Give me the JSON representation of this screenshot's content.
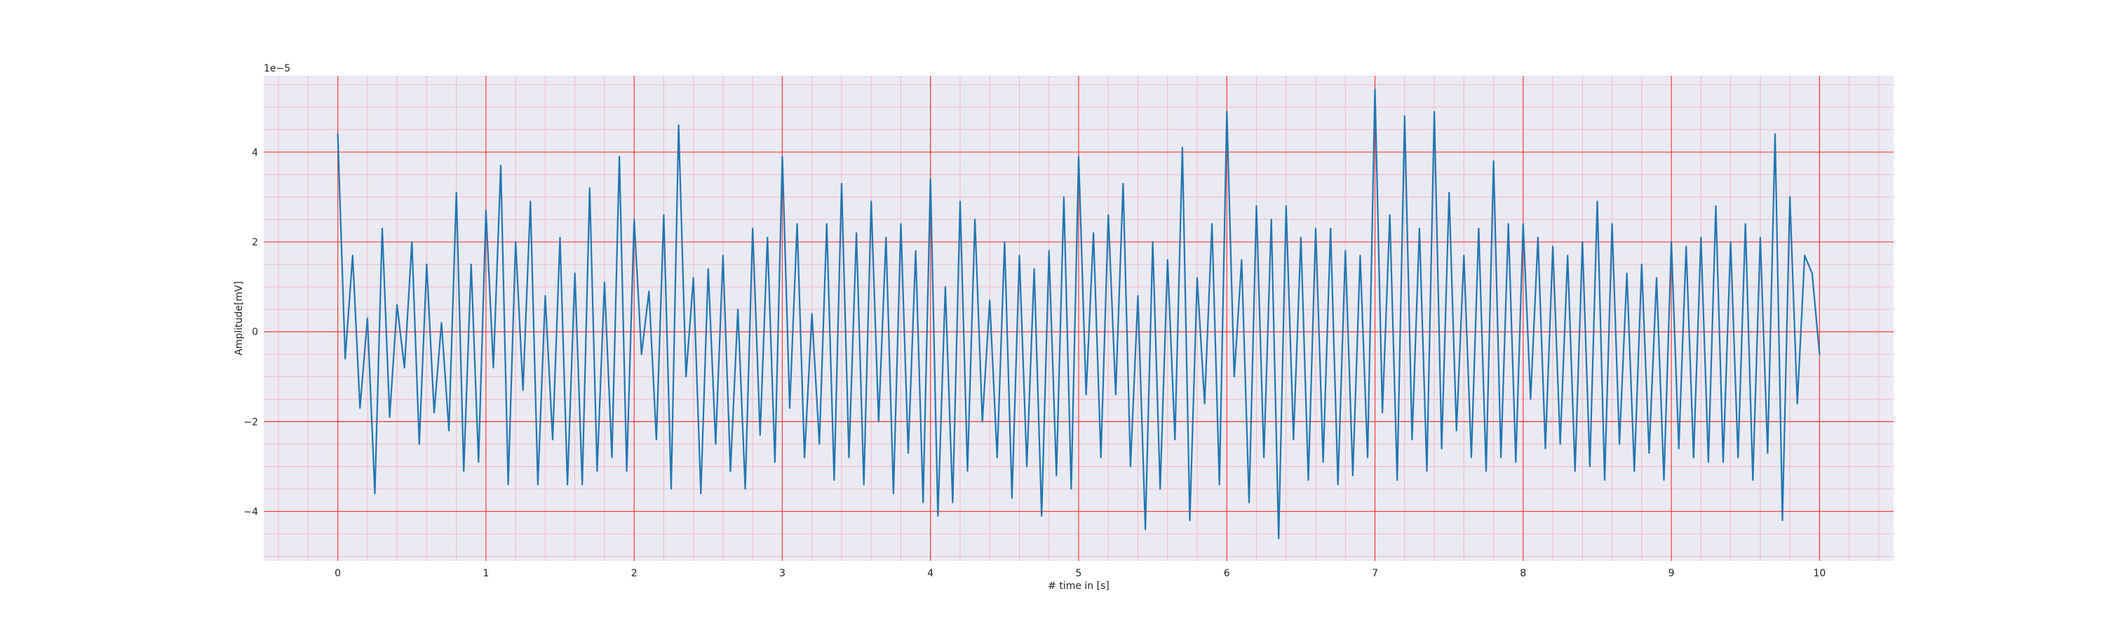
{
  "chart_data": {
    "type": "line",
    "title": "",
    "xlabel": "# time in [s]",
    "ylabel": "Amplitude[mV]",
    "y_offset_text": "1e−5",
    "xlim": [
      -0.5,
      10.5
    ],
    "ylim": [
      -5.1,
      5.7
    ],
    "x_ticks": [
      0,
      1,
      2,
      3,
      4,
      5,
      6,
      7,
      8,
      9,
      10
    ],
    "x_tick_labels": [
      "0",
      "1",
      "2",
      "3",
      "4",
      "5",
      "6",
      "7",
      "8",
      "9",
      "10"
    ],
    "y_ticks": [
      -4,
      -2,
      0,
      2,
      4
    ],
    "y_tick_labels": [
      "−4",
      "−2",
      "0",
      "2",
      "4"
    ],
    "grid": {
      "major": true,
      "minor": true,
      "major_color": "#ff3b3b",
      "minor_color": "#f2b8c6"
    },
    "background_color": "#eaeaf2",
    "series": [
      {
        "color": "#1f77b4",
        "x": [
          0.0,
          0.05,
          0.1,
          0.15,
          0.2,
          0.25,
          0.3,
          0.35,
          0.4,
          0.45,
          0.5,
          0.55,
          0.6,
          0.65,
          0.7,
          0.75,
          0.8,
          0.85,
          0.9,
          0.95,
          1.0,
          1.05,
          1.1,
          1.15,
          1.2,
          1.25,
          1.3,
          1.35,
          1.4,
          1.45,
          1.5,
          1.55,
          1.6,
          1.65,
          1.7,
          1.75,
          1.8,
          1.85,
          1.9,
          1.95,
          2.0,
          2.05,
          2.1,
          2.15,
          2.2,
          2.25,
          2.3,
          2.35,
          2.4,
          2.45,
          2.5,
          2.55,
          2.6,
          2.65,
          2.7,
          2.75,
          2.8,
          2.85,
          2.9,
          2.95,
          3.0,
          3.05,
          3.1,
          3.15,
          3.2,
          3.25,
          3.3,
          3.35,
          3.4,
          3.45,
          3.5,
          3.55,
          3.6,
          3.65,
          3.7,
          3.75,
          3.8,
          3.85,
          3.9,
          3.95,
          4.0,
          4.05,
          4.1,
          4.15,
          4.2,
          4.25,
          4.3,
          4.35,
          4.4,
          4.45,
          4.5,
          4.55,
          4.6,
          4.65,
          4.7,
          4.75,
          4.8,
          4.85,
          4.9,
          4.95,
          5.0,
          5.05,
          5.1,
          5.15,
          5.2,
          5.25,
          5.3,
          5.35,
          5.4,
          5.45,
          5.5,
          5.55,
          5.6,
          5.65,
          5.7,
          5.75,
          5.8,
          5.85,
          5.9,
          5.95,
          6.0,
          6.05,
          6.1,
          6.15,
          6.2,
          6.25,
          6.3,
          6.35,
          6.4,
          6.45,
          6.5,
          6.55,
          6.6,
          6.65,
          6.7,
          6.75,
          6.8,
          6.85,
          6.9,
          6.95,
          7.0,
          7.05,
          7.1,
          7.15,
          7.2,
          7.25,
          7.3,
          7.35,
          7.4,
          7.45,
          7.5,
          7.55,
          7.6,
          7.65,
          7.7,
          7.75,
          7.8,
          7.85,
          7.9,
          7.95,
          8.0,
          8.05,
          8.1,
          8.15,
          8.2,
          8.25,
          8.3,
          8.35,
          8.4,
          8.45,
          8.5,
          8.55,
          8.6,
          8.65,
          8.7,
          8.75,
          8.8,
          8.85,
          8.9,
          8.95,
          9.0,
          9.05,
          9.1,
          9.15,
          9.2,
          9.25,
          9.3,
          9.35,
          9.4,
          9.45,
          9.5,
          9.55,
          9.6,
          9.65,
          9.7,
          9.75,
          9.8,
          9.85,
          9.9,
          9.95,
          10.0
        ],
        "y": [
          4.4,
          -0.6,
          1.7,
          -1.7,
          0.3,
          -3.6,
          2.3,
          -1.9,
          0.6,
          -0.8,
          2.0,
          -2.5,
          1.5,
          -1.8,
          0.2,
          -2.2,
          3.1,
          -3.1,
          1.5,
          -2.9,
          2.7,
          -0.8,
          3.7,
          -3.4,
          2.0,
          -1.3,
          2.9,
          -3.4,
          0.8,
          -2.4,
          2.1,
          -3.4,
          1.3,
          -3.4,
          3.2,
          -3.1,
          1.1,
          -2.8,
          3.9,
          -3.1,
          2.5,
          -0.5,
          0.9,
          -2.4,
          2.6,
          -3.5,
          4.6,
          -1.0,
          1.2,
          -3.6,
          1.4,
          -2.5,
          1.7,
          -3.1,
          0.5,
          -3.5,
          2.3,
          -2.3,
          2.1,
          -2.9,
          3.9,
          -1.7,
          2.4,
          -2.8,
          0.4,
          -2.5,
          2.4,
          -3.3,
          3.3,
          -2.8,
          2.2,
          -3.4,
          2.9,
          -2.0,
          2.1,
          -3.6,
          2.4,
          -2.7,
          1.8,
          -3.8,
          3.4,
          -4.1,
          1.0,
          -3.8,
          2.9,
          -3.1,
          2.5,
          -2.0,
          0.7,
          -2.8,
          2.0,
          -3.7,
          1.7,
          -3.0,
          1.4,
          -4.1,
          1.8,
          -3.2,
          3.0,
          -3.5,
          3.9,
          -1.4,
          2.2,
          -2.8,
          2.6,
          -1.4,
          3.3,
          -3.0,
          0.8,
          -4.4,
          2.0,
          -3.5,
          1.6,
          -2.4,
          4.1,
          -4.2,
          1.2,
          -1.6,
          2.4,
          -3.4,
          4.9,
          -1.0,
          1.6,
          -3.8,
          2.8,
          -2.8,
          2.5,
          -4.6,
          2.8,
          -2.4,
          2.1,
          -3.3,
          2.3,
          -2.9,
          2.3,
          -3.4,
          1.8,
          -3.2,
          1.7,
          -2.8,
          5.4,
          -1.8,
          2.6,
          -3.3,
          4.8,
          -2.4,
          2.3,
          -3.1,
          4.9,
          -2.6,
          3.1,
          -2.2,
          1.7,
          -2.8,
          2.3,
          -3.1,
          3.8,
          -2.8,
          2.4,
          -2.9,
          2.4,
          -1.5,
          2.1,
          -2.6,
          1.9,
          -2.5,
          1.7,
          -3.1,
          2.0,
          -3.0,
          2.9,
          -3.3,
          2.4,
          -2.5,
          1.3,
          -3.1,
          1.5,
          -2.7,
          1.2,
          -3.3,
          2.0,
          -2.6,
          1.9,
          -2.8,
          2.1,
          -2.9,
          2.8,
          -2.9,
          2.0,
          -2.8,
          2.4,
          -3.3,
          2.1,
          -2.7,
          4.4,
          -4.2,
          3.0,
          -1.6,
          1.7,
          1.3,
          -0.5
        ]
      }
    ]
  }
}
